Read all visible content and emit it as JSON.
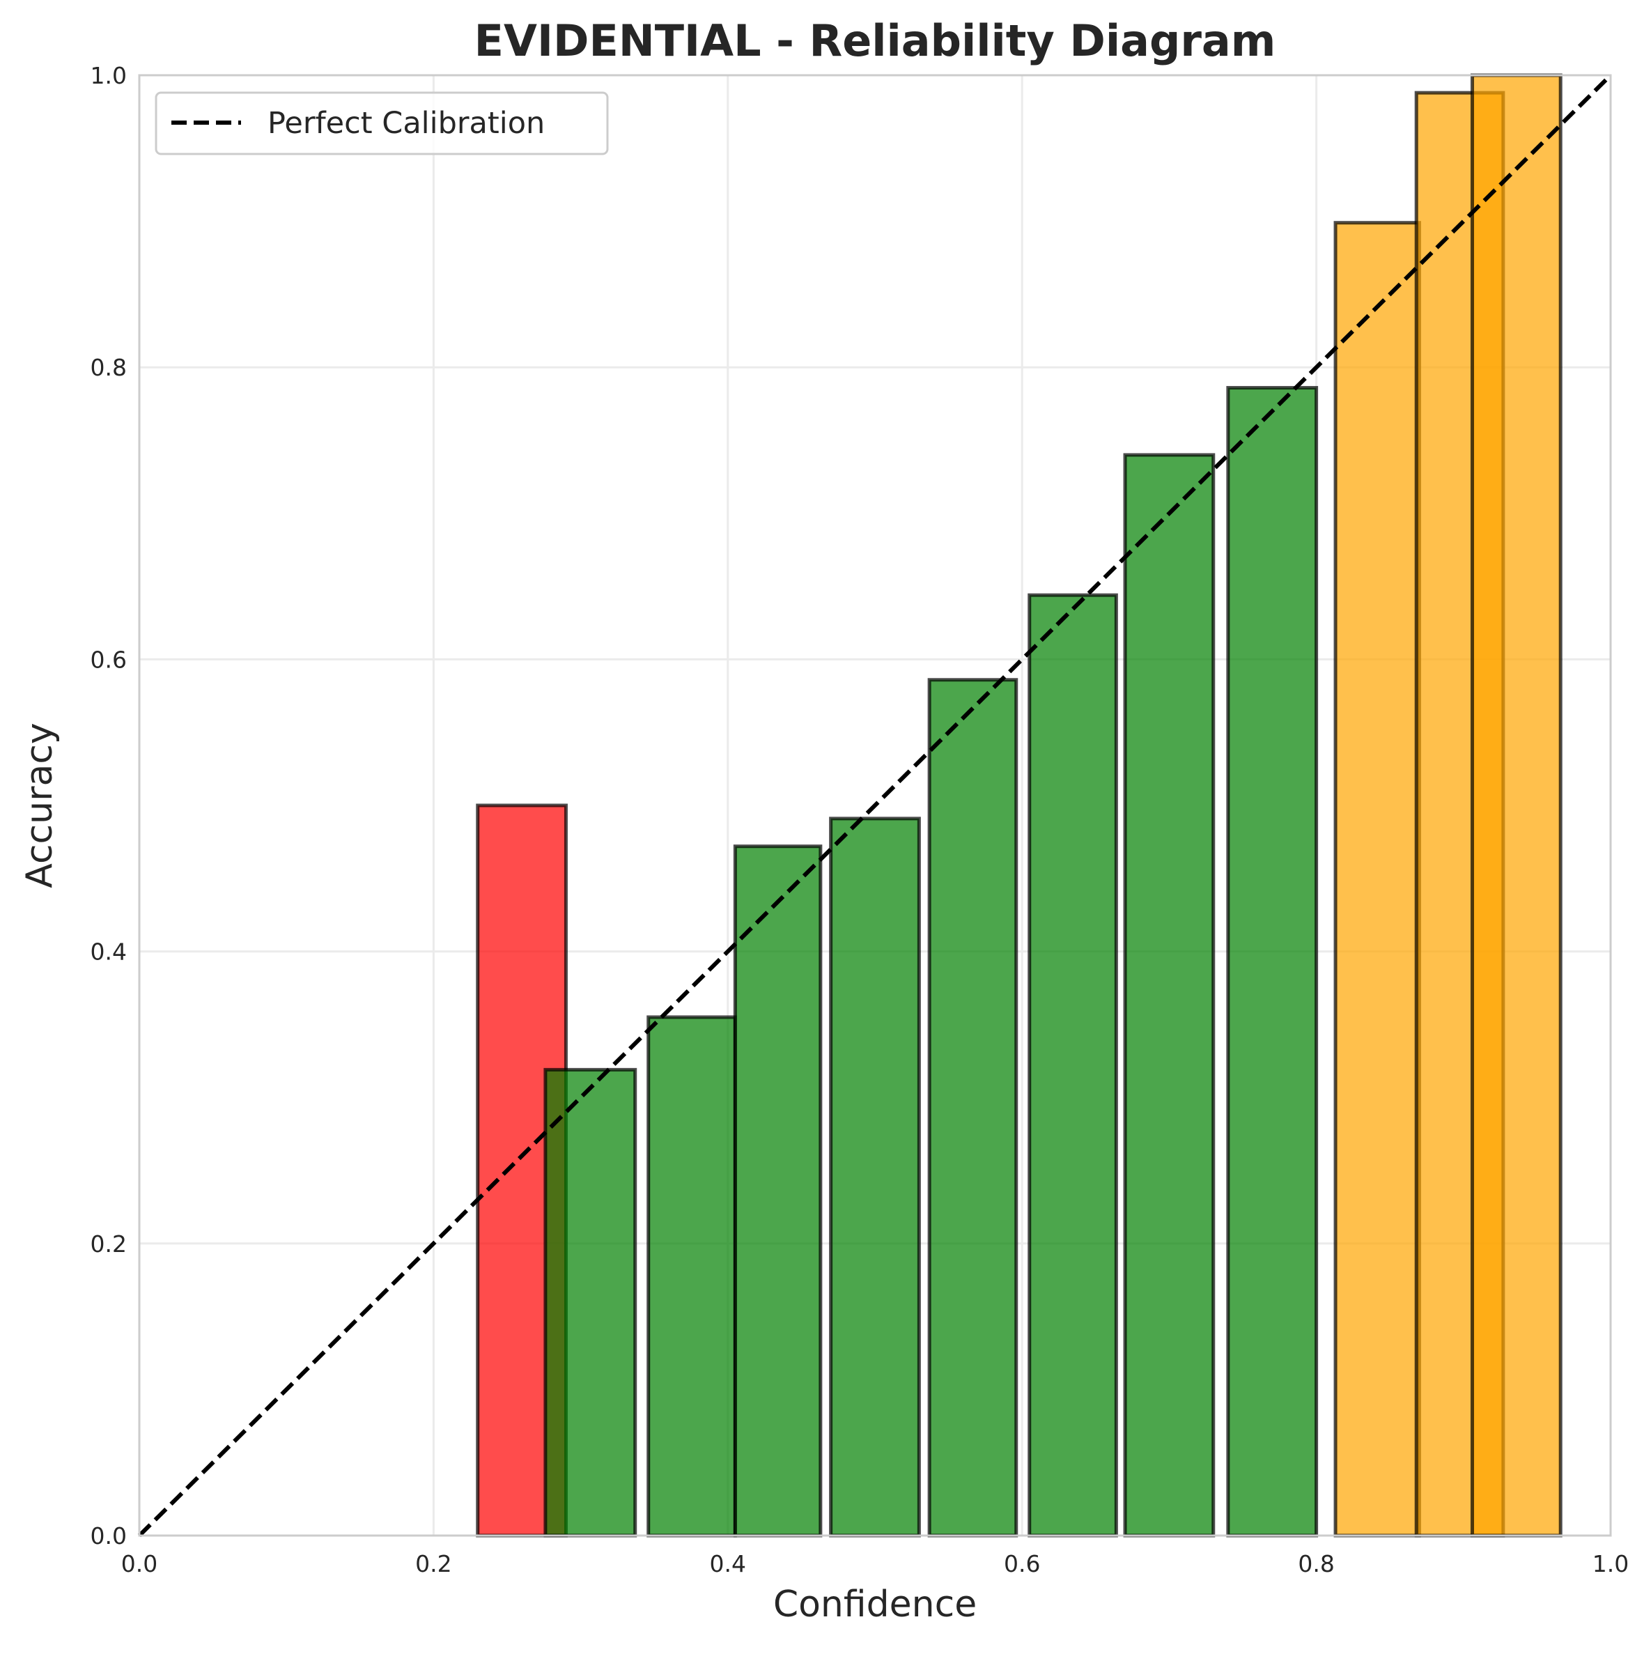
{
  "chart_data": {
    "type": "bar",
    "title": "EVIDENTIAL - Reliability Diagram",
    "xlabel": "Confidence",
    "ylabel": "Accuracy",
    "xlim": [
      0.0,
      1.0
    ],
    "ylim": [
      0.0,
      1.0
    ],
    "xticks": [
      "0.0",
      "0.2",
      "0.4",
      "0.6",
      "0.8",
      "1.0"
    ],
    "yticks": [
      "0.0",
      "0.2",
      "0.4",
      "0.6",
      "0.8",
      "1.0"
    ],
    "grid": true,
    "legend": {
      "position": "top-left",
      "entries": [
        "Perfect Calibration"
      ]
    },
    "reference_line": {
      "name": "Perfect Calibration",
      "style": "dashed",
      "color": "#000000",
      "from": [
        0,
        0
      ],
      "to": [
        1,
        1
      ]
    },
    "colors": {
      "red": "#ff0000",
      "green": "#008000",
      "orange": "#ffa500",
      "edge": "#000000",
      "bar_opacity": 0.7
    },
    "bars": [
      {
        "x0": 0.132,
        "x1": 0.19,
        "accuracy": 0.0,
        "color": "green"
      },
      {
        "x0": 0.23,
        "x1": 0.29,
        "accuracy": 0.5,
        "color": "red"
      },
      {
        "x0": 0.276,
        "x1": 0.337,
        "accuracy": 0.319,
        "color": "green"
      },
      {
        "x0": 0.346,
        "x1": 0.405,
        "accuracy": 0.355,
        "color": "green"
      },
      {
        "x0": 0.405,
        "x1": 0.463,
        "accuracy": 0.472,
        "color": "green"
      },
      {
        "x0": 0.47,
        "x1": 0.53,
        "accuracy": 0.491,
        "color": "green"
      },
      {
        "x0": 0.537,
        "x1": 0.596,
        "accuracy": 0.586,
        "color": "green"
      },
      {
        "x0": 0.605,
        "x1": 0.664,
        "accuracy": 0.644,
        "color": "green"
      },
      {
        "x0": 0.67,
        "x1": 0.73,
        "accuracy": 0.74,
        "color": "green"
      },
      {
        "x0": 0.74,
        "x1": 0.8,
        "accuracy": 0.786,
        "color": "green"
      },
      {
        "x0": 0.813,
        "x1": 0.87,
        "accuracy": 0.899,
        "color": "orange"
      },
      {
        "x0": 0.868,
        "x1": 0.927,
        "accuracy": 0.988,
        "color": "orange"
      },
      {
        "x0": 0.906,
        "x1": 0.966,
        "accuracy": 1.0,
        "color": "orange"
      }
    ]
  }
}
